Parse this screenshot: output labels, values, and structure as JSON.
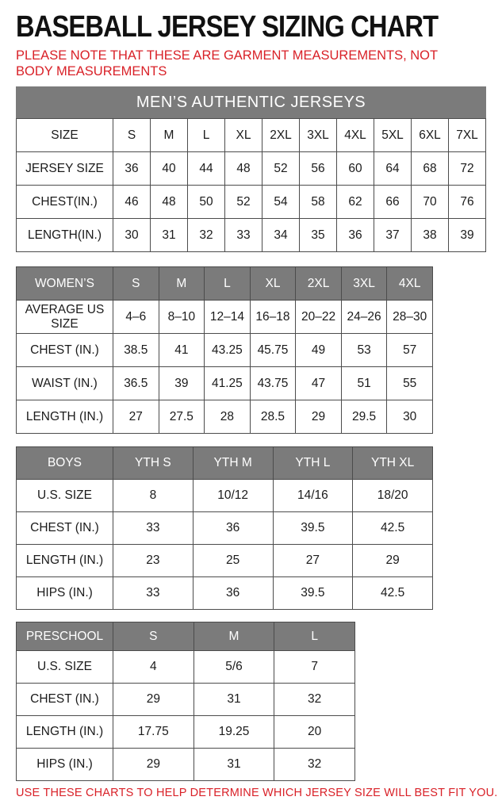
{
  "page": {
    "title": "BASEBALL JERSEY SIZING CHART",
    "note": "PLEASE NOTE THAT THESE ARE GARMENT MEASUREMENTS, NOT BODY MEASUREMENTS",
    "footer": "USE THESE CHARTS TO HELP DETERMINE WHICH JERSEY SIZE WILL BEST FIT YOU."
  },
  "colors": {
    "accent_red": "#d92128",
    "header_gray": "#7b7b7b",
    "border_dark": "#4c4c4c",
    "header_text": "#ffffff",
    "body_text": "#1b1b1b"
  },
  "tables": {
    "mens": {
      "banner": "MEN’S AUTHENTIC JERSEYS",
      "rows": [
        [
          "SIZE",
          "S",
          "M",
          "L",
          "XL",
          "2XL",
          "3XL",
          "4XL",
          "5XL",
          "6XL",
          "7XL"
        ],
        [
          "JERSEY SIZE",
          "36",
          "40",
          "44",
          "48",
          "52",
          "56",
          "60",
          "64",
          "68",
          "72"
        ],
        [
          "CHEST(IN.)",
          "46",
          "48",
          "50",
          "52",
          "54",
          "58",
          "62",
          "66",
          "70",
          "76"
        ],
        [
          "LENGTH(IN.)",
          "30",
          "31",
          "32",
          "33",
          "34",
          "35",
          "36",
          "37",
          "38",
          "39"
        ]
      ]
    },
    "womens": {
      "header": [
        "WOMEN’S",
        "S",
        "M",
        "L",
        "XL",
        "2XL",
        "3XL",
        "4XL"
      ],
      "rows": [
        [
          "AVERAGE US SIZE",
          "4–6",
          "8–10",
          "12–14",
          "16–18",
          "20–22",
          "24–26",
          "28–30"
        ],
        [
          "CHEST (IN.)",
          "38.5",
          "41",
          "43.25",
          "45.75",
          "49",
          "53",
          "57"
        ],
        [
          "WAIST (IN.)",
          "36.5",
          "39",
          "41.25",
          "43.75",
          "47",
          "51",
          "55"
        ],
        [
          "LENGTH (IN.)",
          "27",
          "27.5",
          "28",
          "28.5",
          "29",
          "29.5",
          "30"
        ]
      ]
    },
    "boys": {
      "header": [
        "BOYS",
        "YTH S",
        "YTH M",
        "YTH L",
        "YTH XL"
      ],
      "rows": [
        [
          "U.S. SIZE",
          "8",
          "10/12",
          "14/16",
          "18/20"
        ],
        [
          "CHEST (IN.)",
          "33",
          "36",
          "39.5",
          "42.5"
        ],
        [
          "LENGTH (IN.)",
          "23",
          "25",
          "27",
          "29"
        ],
        [
          "HIPS (IN.)",
          "33",
          "36",
          "39.5",
          "42.5"
        ]
      ]
    },
    "preschool": {
      "header": [
        "PRESCHOOL",
        "S",
        "M",
        "L"
      ],
      "rows": [
        [
          "U.S. SIZE",
          "4",
          "5/6",
          "7"
        ],
        [
          "CHEST (IN.)",
          "29",
          "31",
          "32"
        ],
        [
          "LENGTH (IN.)",
          "17.75",
          "19.25",
          "20"
        ],
        [
          "HIPS (IN.)",
          "29",
          "31",
          "32"
        ]
      ]
    }
  }
}
